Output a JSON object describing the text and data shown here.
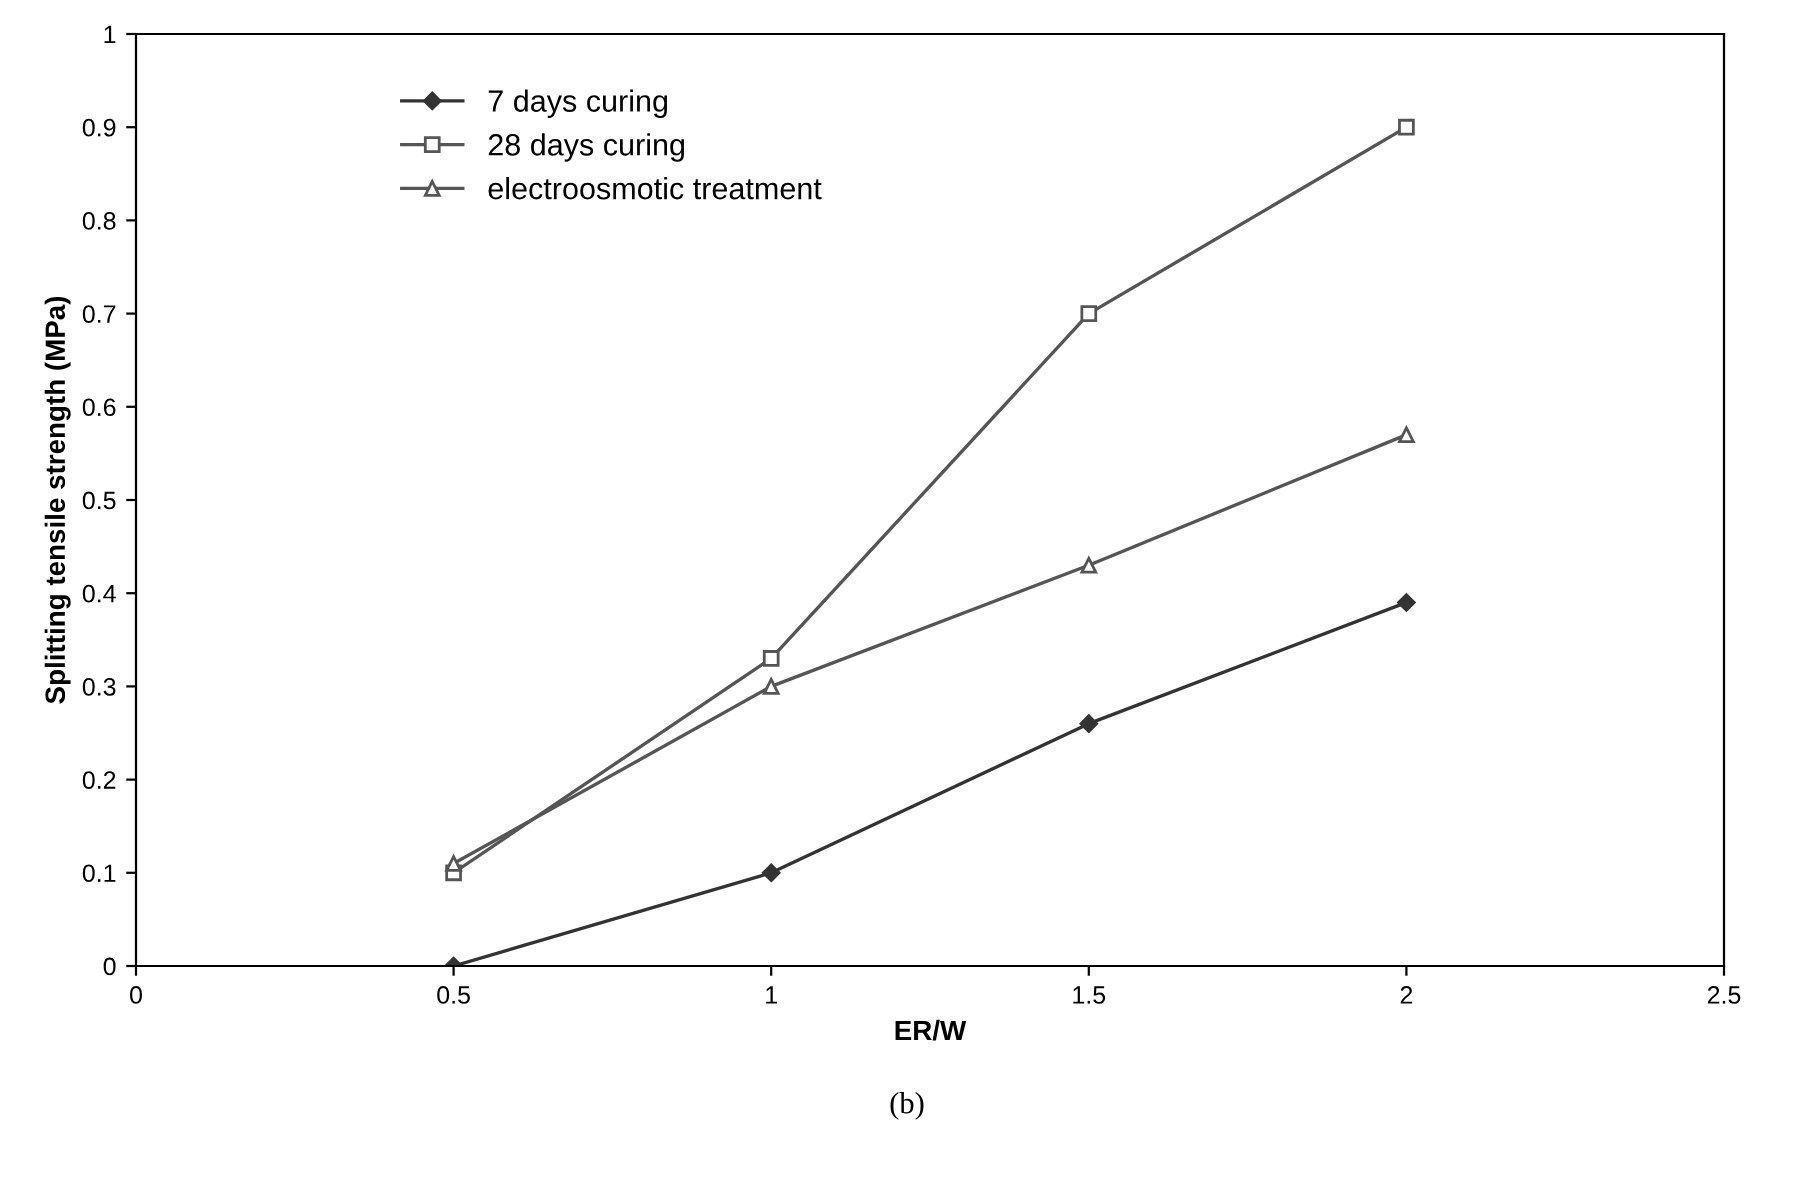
{
  "chart_data": {
    "type": "line",
    "xlabel": "ER/W",
    "ylabel": "Splitting tensile strength (MPa)",
    "x": [
      0.5,
      1,
      1.5,
      2
    ],
    "series": [
      {
        "name": "7 days curing",
        "color": "#333333",
        "marker": "diamond",
        "values": [
          0,
          0.1,
          0.26,
          0.39
        ]
      },
      {
        "name": "28 days curing",
        "color": "#555555",
        "marker": "square",
        "values": [
          0.1,
          0.33,
          0.7,
          0.9
        ]
      },
      {
        "name": "electroosmotic treatment",
        "color": "#555555",
        "marker": "triangle",
        "values": [
          0.11,
          0.3,
          0.43,
          0.57
        ]
      }
    ],
    "xlim": [
      0,
      2.5
    ],
    "xticks": [
      0,
      0.5,
      1,
      1.5,
      2,
      2.5
    ],
    "ylim": [
      0,
      1
    ],
    "yticks": [
      0,
      0.1,
      0.2,
      0.3,
      0.4,
      0.5,
      0.6,
      0.7,
      0.8,
      0.9,
      1
    ],
    "grid": false,
    "legend": "top left",
    "line_style": "solid",
    "annotations": [
      "(b)"
    ]
  }
}
